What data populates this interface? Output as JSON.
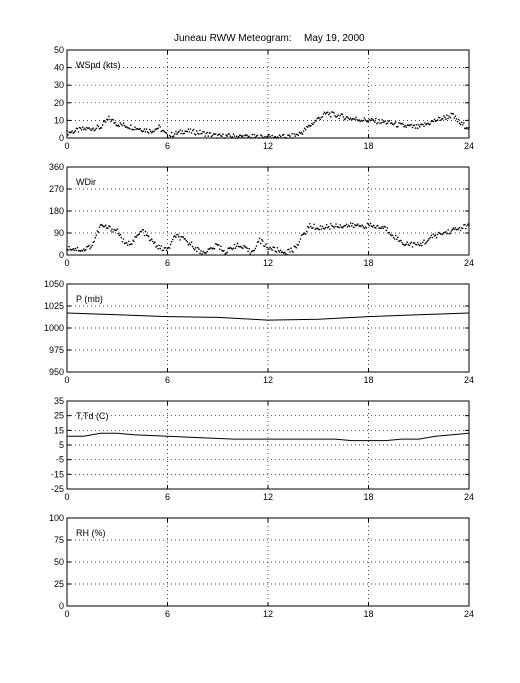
{
  "title": "Juneau RWW Meteogram:",
  "date": "May 19, 2000",
  "chart_data": [
    {
      "type": "scatter",
      "label": "WSpd (kts)",
      "xlim": [
        0,
        24
      ],
      "xticks": [
        "0",
        "6",
        "12",
        "18",
        "24"
      ],
      "ylim": [
        0,
        50
      ],
      "yticks": [
        "0",
        "10",
        "20",
        "30",
        "40",
        "50"
      ],
      "grid": true,
      "x": [
        0,
        1,
        2,
        2.5,
        3,
        4,
        5,
        5.5,
        6,
        7,
        8,
        9,
        10,
        11,
        12,
        13,
        13.5,
        14,
        14.5,
        15,
        15.5,
        16,
        17,
        18,
        19,
        20,
        21,
        22,
        23,
        23.5,
        24
      ],
      "y": [
        3,
        5,
        6,
        11,
        8,
        6,
        4,
        6,
        1,
        4,
        3,
        1,
        1,
        0.5,
        0.5,
        0.5,
        1,
        3,
        7,
        11,
        14,
        13,
        11,
        10,
        9,
        7,
        6,
        10,
        13,
        8,
        6
      ]
    },
    {
      "type": "scatter",
      "label": "WDir",
      "xlim": [
        0,
        24
      ],
      "xticks": [
        "0",
        "6",
        "12",
        "18",
        "24"
      ],
      "ylim": [
        0,
        360
      ],
      "yticks": [
        "0",
        "90",
        "180",
        "270",
        "360"
      ],
      "grid": true,
      "x": [
        0,
        1,
        1.5,
        2,
        3,
        3.5,
        4,
        4.5,
        5,
        5.5,
        6,
        6.5,
        7,
        7.5,
        8,
        8.5,
        9,
        9.5,
        10,
        10.5,
        11,
        11.5,
        12,
        12.5,
        13,
        13.5,
        14,
        14.5,
        15,
        16,
        17,
        18,
        19,
        19.5,
        20,
        21,
        22,
        23,
        24
      ],
      "y": [
        30,
        20,
        40,
        120,
        100,
        40,
        60,
        100,
        60,
        30,
        20,
        80,
        60,
        40,
        10,
        20,
        40,
        10,
        40,
        30,
        10,
        60,
        30,
        20,
        10,
        20,
        70,
        120,
        110,
        120,
        120,
        120,
        110,
        80,
        50,
        40,
        80,
        100,
        120
      ]
    },
    {
      "type": "line",
      "label": "P (mb)",
      "xlim": [
        0,
        24
      ],
      "xticks": [
        "0",
        "6",
        "12",
        "18",
        "24"
      ],
      "ylim": [
        950,
        1050
      ],
      "yticks": [
        "950",
        "975",
        "1000",
        "1025",
        "1050"
      ],
      "grid": true,
      "x": [
        0,
        3,
        6,
        9,
        12,
        15,
        18,
        21,
        24
      ],
      "y": [
        1017,
        1015,
        1013,
        1012,
        1009,
        1010,
        1013,
        1015,
        1017
      ]
    },
    {
      "type": "line",
      "label": "T,Td (C)",
      "xlim": [
        0,
        24
      ],
      "xticks": [
        "0",
        "6",
        "12",
        "18",
        "24"
      ],
      "ylim": [
        -25,
        35
      ],
      "yticks": [
        "-25",
        "-15",
        "-5",
        "5",
        "15",
        "25",
        "35"
      ],
      "grid": true,
      "x": [
        0,
        1,
        2,
        3,
        4,
        6,
        8,
        10,
        12,
        14,
        16,
        17,
        18,
        19,
        20,
        21,
        22,
        23,
        24
      ],
      "y": [
        11,
        11,
        13,
        13,
        12,
        11,
        10,
        9,
        9,
        9,
        9,
        8,
        8,
        8,
        9,
        9,
        11,
        12,
        13
      ]
    },
    {
      "type": "line",
      "label": "RH (%)",
      "xlim": [
        0,
        24
      ],
      "xticks": [
        "0",
        "6",
        "12",
        "18",
        "24"
      ],
      "ylim": [
        0,
        100
      ],
      "yticks": [
        "0",
        "25",
        "50",
        "75",
        "100"
      ],
      "grid": true,
      "x": [],
      "y": []
    }
  ]
}
